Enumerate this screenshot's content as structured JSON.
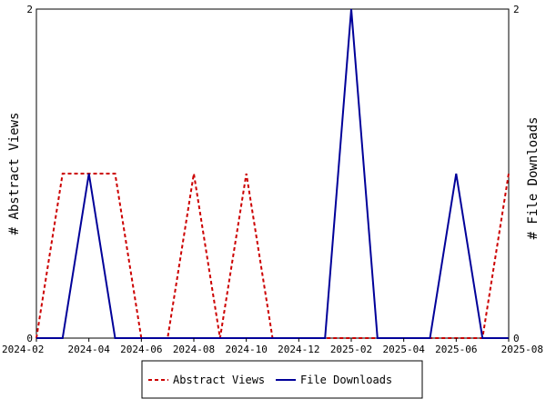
{
  "chart_data": {
    "type": "line",
    "x": [
      "2024-02",
      "2024-03",
      "2024-04",
      "2024-05",
      "2024-06",
      "2024-07",
      "2024-08",
      "2024-09",
      "2024-10",
      "2024-11",
      "2024-12",
      "2025-01",
      "2025-02",
      "2025-03",
      "2025-04",
      "2025-05",
      "2025-06",
      "2025-07",
      "2025-08"
    ],
    "xtick_labels": [
      "2024-02",
      "2024-04",
      "2024-06",
      "2024-08",
      "2024-10",
      "2024-12",
      "2025-02",
      "2025-04",
      "2025-06",
      "2025-08"
    ],
    "series": [
      {
        "name": "Abstract Views",
        "axis": "left",
        "color": "#cc0000",
        "style": "dashed",
        "values": [
          0,
          1,
          1,
          1,
          0,
          0,
          1,
          0,
          1,
          0,
          0,
          0,
          0,
          0,
          0,
          0,
          0,
          0,
          1
        ]
      },
      {
        "name": "File Downloads",
        "axis": "right",
        "color": "#000099",
        "style": "solid",
        "values": [
          0,
          0,
          1,
          0,
          0,
          0,
          0,
          0,
          0,
          0,
          0,
          0,
          2,
          0,
          0,
          0,
          1,
          0,
          0
        ]
      }
    ],
    "ylabel_left": "# Abstract Views",
    "ylabel_right": "# File Downloads",
    "ylim_left": [
      0,
      2
    ],
    "ylim_right": [
      0,
      2
    ],
    "yticks_left": [
      "0",
      "2"
    ],
    "yticks_right": [
      "0",
      "2"
    ],
    "grid": false,
    "legend_position": "bottom-center"
  }
}
